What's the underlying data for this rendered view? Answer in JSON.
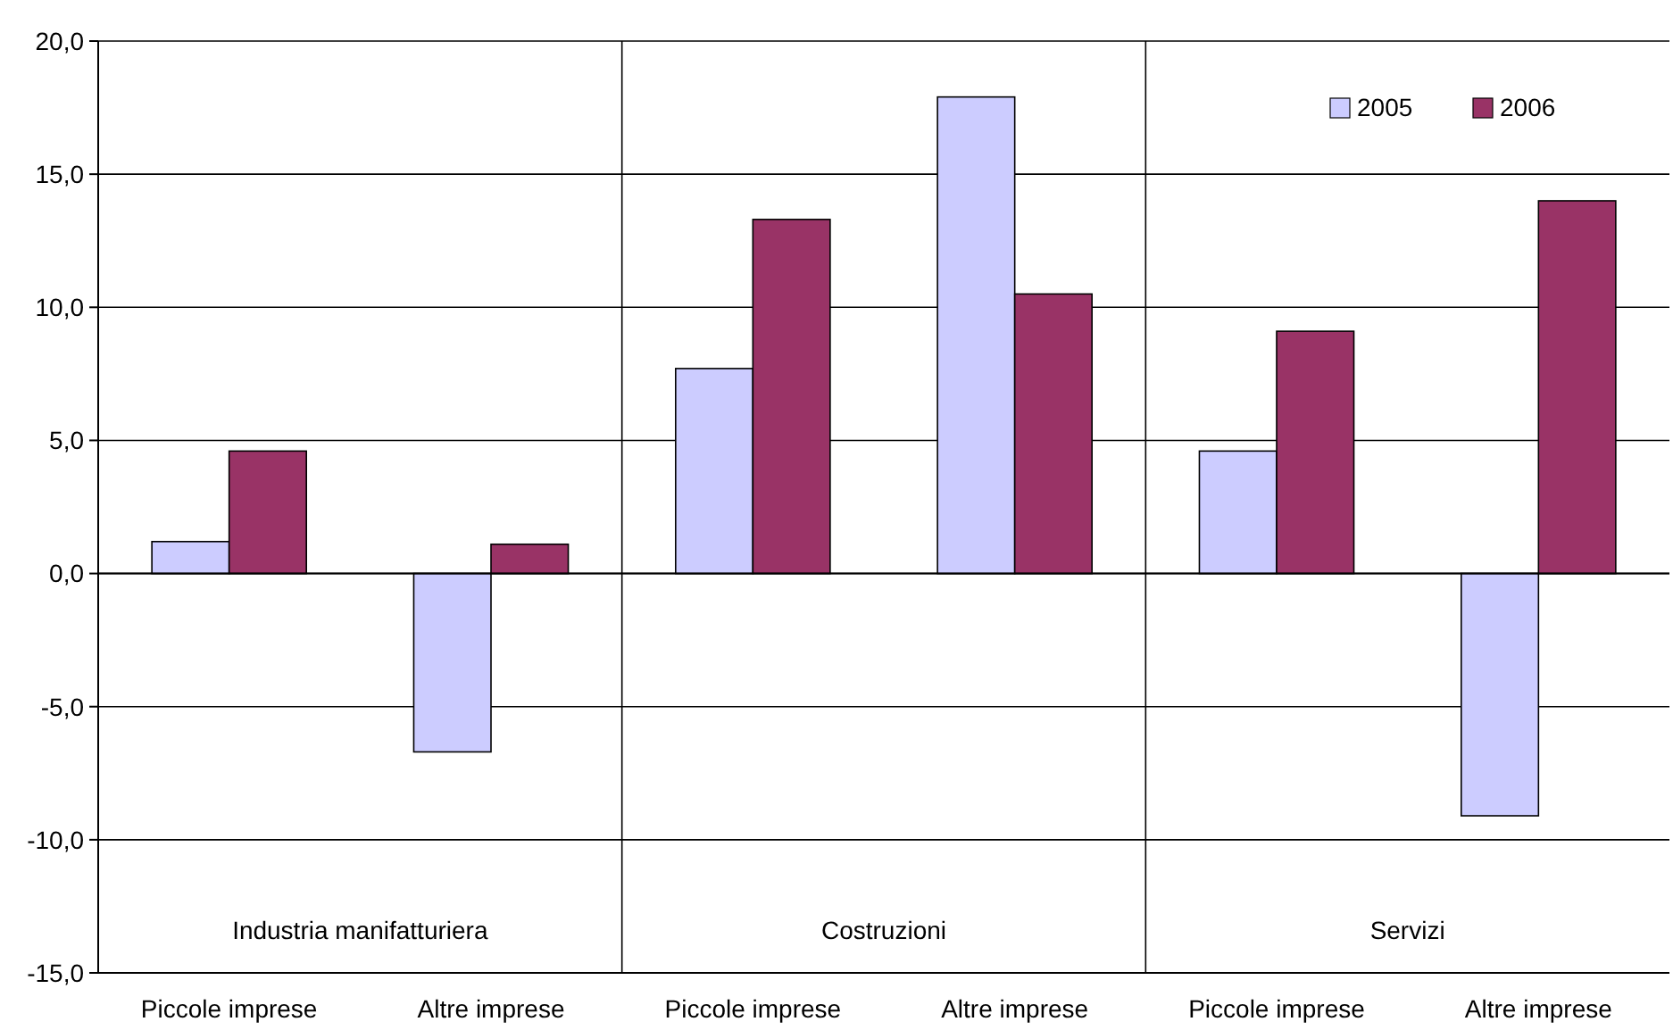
{
  "chart_data": {
    "type": "bar",
    "categories": [
      "Piccole imprese",
      "Altre imprese",
      "Piccole imprese",
      "Altre imprese",
      "Piccole imprese",
      "Altre imprese"
    ],
    "series": [
      {
        "name": "2005",
        "color": "#ccccff",
        "values": [
          1.2,
          -6.7,
          7.7,
          17.9,
          4.6,
          -9.1
        ]
      },
      {
        "name": "2006",
        "color": "#993366",
        "values": [
          4.6,
          1.1,
          13.3,
          10.5,
          9.1,
          14.0
        ]
      }
    ],
    "ylim": [
      -15,
      20
    ],
    "yticks": [
      {
        "value": -15,
        "label": "-15,0"
      },
      {
        "value": -10,
        "label": "-10,0"
      },
      {
        "value": -5,
        "label": "-5,0"
      },
      {
        "value": 0,
        "label": "0,0"
      },
      {
        "value": 5,
        "label": "5,0"
      },
      {
        "value": 10,
        "label": "10,0"
      },
      {
        "value": 15,
        "label": "15,0"
      },
      {
        "value": 20,
        "label": "20,0"
      }
    ],
    "annotations": [
      "Industria manifatturiera",
      "Costruzioni",
      "Servizi"
    ],
    "grid": "y",
    "legend": "top right"
  }
}
